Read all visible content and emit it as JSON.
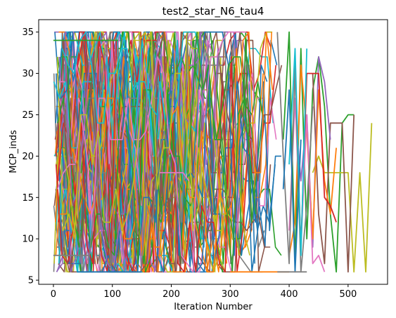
{
  "chart_data": {
    "type": "line",
    "title": "test2_star_N6_tau4",
    "xlabel": "Iteration Number",
    "ylabel": "MCP_inds",
    "xlim": [
      -25,
      567
    ],
    "ylim": [
      4.5,
      36.5
    ],
    "xticks": [
      0,
      100,
      200,
      300,
      400,
      500
    ],
    "yticks": [
      5,
      10,
      15,
      20,
      25,
      30,
      35
    ],
    "grid": false,
    "legend": "none",
    "value_range": [
      6,
      35
    ],
    "series_count": 120,
    "colors": [
      "#1f77b4",
      "#ff7f0e",
      "#2ca02c",
      "#d62728",
      "#9467bd",
      "#8c564b",
      "#e377c2",
      "#7f7f7f",
      "#bcbd22",
      "#17becf"
    ],
    "series": [
      {
        "color": "#2ca02c",
        "x": [
          390,
          400,
          410,
          420,
          430,
          440,
          450,
          460,
          470,
          480,
          490,
          500,
          510
        ],
        "y": [
          22,
          35,
          7,
          33,
          10,
          28,
          32,
          26,
          13,
          6,
          24,
          25,
          25
        ]
      },
      {
        "color": "#bcbd22",
        "x": [
          440,
          450,
          460,
          470,
          480,
          490,
          500,
          510,
          520,
          530,
          540
        ],
        "y": [
          18,
          20,
          18,
          18,
          18,
          18,
          18,
          6,
          18,
          6,
          24
        ]
      },
      {
        "color": "#8c564b",
        "x": [
          440,
          450,
          460,
          470,
          480,
          490,
          500,
          510
        ],
        "y": [
          30,
          13,
          7,
          24,
          24,
          24,
          6,
          25
        ]
      },
      {
        "color": "#9467bd",
        "x": [
          410,
          420,
          430,
          440,
          450,
          460,
          470
        ],
        "y": [
          26,
          17,
          25,
          9,
          32,
          29,
          22
        ]
      },
      {
        "color": "#ff7f0e",
        "x": [
          400,
          410,
          420,
          430,
          440,
          450,
          460,
          470,
          480
        ],
        "y": [
          8,
          12,
          31,
          23,
          10,
          28,
          17,
          13,
          21
        ]
      },
      {
        "color": "#d62728",
        "x": [
          410,
          420,
          430,
          440,
          450,
          460,
          470,
          480
        ],
        "y": [
          30,
          9,
          30,
          30,
          30,
          15,
          14,
          12
        ]
      },
      {
        "color": "#e377c2",
        "x": [
          400,
          410,
          420,
          430,
          440,
          450,
          460
        ],
        "y": [
          11,
          27,
          9,
          25,
          7,
          8,
          6
        ]
      },
      {
        "color": "#7f7f7f",
        "x": [
          380,
          390,
          400,
          410,
          420,
          430,
          440
        ],
        "y": [
          35,
          20,
          7,
          31,
          6,
          14,
          26
        ]
      },
      {
        "color": "#17becf",
        "x": [
          400,
          410,
          420,
          430
        ],
        "y": [
          19,
          33,
          8,
          33
        ]
      },
      {
        "color": "#1f77b4",
        "x": [
          390,
          400,
          410,
          420
        ],
        "y": [
          16,
          28,
          6,
          22
        ]
      },
      {
        "color": "#7f7f7f",
        "x": [
          0,
          10,
          20,
          30,
          40,
          50,
          60
        ],
        "y": [
          8,
          8,
          8,
          8,
          8,
          8,
          8
        ]
      },
      {
        "color": "#2ca02c",
        "x": [
          0,
          10,
          20,
          30,
          40,
          50,
          60,
          70,
          80,
          90,
          100,
          110
        ],
        "y": [
          34,
          34,
          34,
          34,
          34,
          34,
          34,
          34,
          34,
          34,
          34,
          34
        ]
      },
      {
        "color": "#e377c2",
        "x": [
          180,
          190,
          200,
          210,
          220,
          230
        ],
        "y": [
          18,
          18,
          18,
          18,
          18,
          17
        ]
      },
      {
        "color": "#1f77b4",
        "x": [
          40,
          50,
          60,
          70,
          80,
          90,
          100,
          110,
          120,
          130,
          140,
          150
        ],
        "y": [
          6,
          6,
          6,
          6,
          6,
          6,
          6,
          6,
          6,
          6,
          6,
          6
        ]
      },
      {
        "color": "#ff7f0e",
        "x": [
          300,
          310,
          320,
          330,
          340,
          350,
          360,
          370,
          380,
          390,
          400
        ],
        "y": [
          6,
          6,
          6,
          6,
          6,
          6,
          6,
          6,
          6,
          6,
          6
        ]
      },
      {
        "color": "#7f7f7f",
        "x": [
          380,
          390,
          400,
          410,
          420,
          430
        ],
        "y": [
          6,
          6,
          6,
          6,
          6,
          6
        ]
      }
    ]
  }
}
